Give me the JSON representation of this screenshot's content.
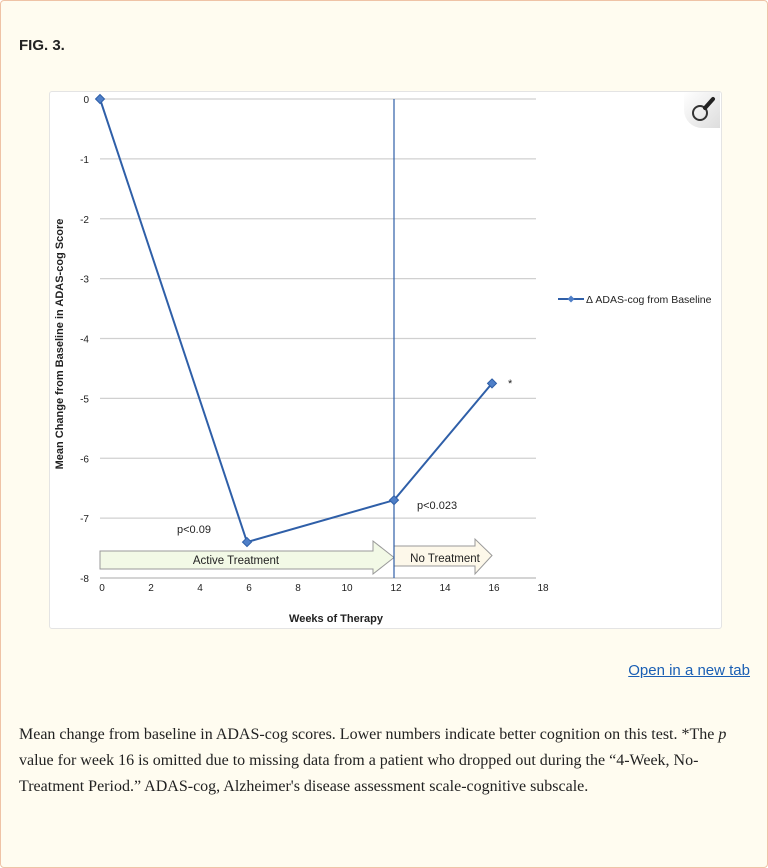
{
  "figure_label": "FIG. 3.",
  "open_link": "Open in a new tab",
  "caption": {
    "part1": "Mean change from baseline in ADAS-cog scores. Lower numbers indicate better cognition on this test. *The ",
    "p_italic": "p",
    "part2": " value for week 16 is omitted due to missing data from a patient who dropped out during the “4-Week, No-Treatment Period.” ADAS-cog, Alzheimer's disease assessment scale-cognitive subscale."
  },
  "chart_data": {
    "type": "line",
    "xlabel": "Weeks of Therapy",
    "ylabel": "Mean Change from Baseline in ADAS-cog Score",
    "xlim": [
      0,
      18
    ],
    "ylim": [
      -8,
      0
    ],
    "xticks": [
      "0",
      "2",
      "4",
      "6",
      "8",
      "10",
      "12",
      "14",
      "16",
      "18"
    ],
    "yticks": [
      "0",
      "-1",
      "-2",
      "-3",
      "-4",
      "-5",
      "-6",
      "-7",
      "-8"
    ],
    "grid": true,
    "legend_position": "right",
    "series": [
      {
        "name": "Δ ADAS-cog from Baseline",
        "color": "#2f5fa8",
        "x": [
          0,
          6,
          12,
          16
        ],
        "y": [
          0,
          -7.4,
          -6.7,
          -4.75
        ]
      }
    ],
    "annotations": {
      "p6": "p<0.09",
      "p12": "p<0.023",
      "star": "*",
      "active": "Active Treatment",
      "none": "No Treatment"
    },
    "vertical_line_x": 12
  }
}
